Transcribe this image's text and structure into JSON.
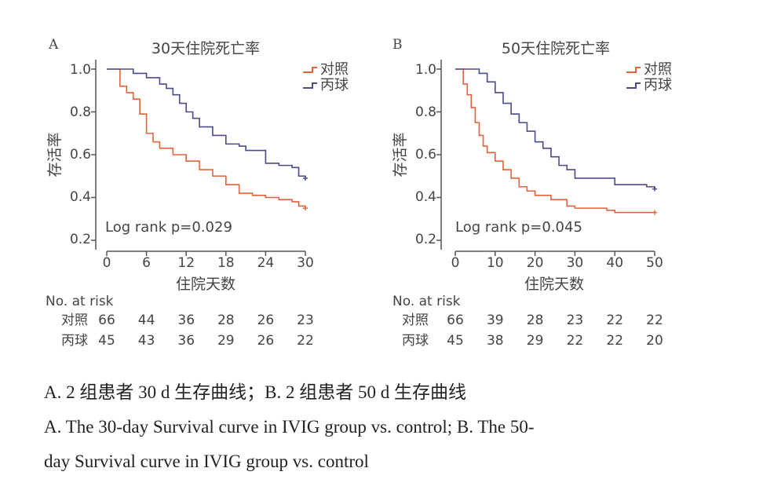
{
  "colors": {
    "control": "#e2643c",
    "ivig": "#4a4a8c",
    "axis": "#555555"
  },
  "chart_data": [
    {
      "panel": "A",
      "type": "line",
      "title": "30天住院死亡率",
      "xlabel": "住院天数",
      "ylabel": "存活率",
      "xticks": [
        0,
        6,
        12,
        18,
        24,
        30
      ],
      "yticks": [
        0.2,
        0.4,
        0.6,
        0.8,
        1.0
      ],
      "ytick_labels": [
        "0.2",
        "0.4",
        "0.6",
        "0.8",
        "1.0"
      ],
      "xlim": [
        0,
        30
      ],
      "ylim": [
        0.2,
        1.0
      ],
      "annotation": "Log rank p=0.029",
      "series": [
        {
          "name": "对照",
          "key": "control",
          "x": [
            0,
            2,
            3,
            4,
            5,
            6,
            7,
            8,
            10,
            12,
            14,
            16,
            18,
            20,
            22,
            24,
            26,
            28,
            29,
            30
          ],
          "y": [
            1.0,
            0.92,
            0.89,
            0.86,
            0.79,
            0.7,
            0.66,
            0.63,
            0.6,
            0.57,
            0.53,
            0.5,
            0.46,
            0.42,
            0.41,
            0.4,
            0.39,
            0.38,
            0.36,
            0.35
          ]
        },
        {
          "name": "丙球",
          "key": "ivig",
          "x": [
            0,
            4,
            6,
            8,
            9,
            10,
            11,
            12,
            13,
            14,
            16,
            18,
            20,
            21,
            24,
            26,
            28,
            29,
            30
          ],
          "y": [
            1.0,
            0.98,
            0.96,
            0.93,
            0.91,
            0.88,
            0.84,
            0.8,
            0.77,
            0.73,
            0.69,
            0.65,
            0.64,
            0.62,
            0.56,
            0.55,
            0.54,
            0.5,
            0.49
          ]
        }
      ],
      "risk_table": {
        "header": "No. at risk",
        "columns": [
          "0",
          "6",
          "12",
          "18",
          "24",
          "30"
        ],
        "rows": [
          {
            "label": "对照",
            "values": [
              "66",
              "44",
              "36",
              "28",
              "26",
              "23"
            ]
          },
          {
            "label": "丙球",
            "values": [
              "45",
              "43",
              "36",
              "29",
              "26",
              "22"
            ]
          }
        ]
      }
    },
    {
      "panel": "B",
      "type": "line",
      "title": "50天住院死亡率",
      "xlabel": "住院天数",
      "ylabel": "存活率",
      "xticks": [
        0,
        10,
        20,
        30,
        40,
        50
      ],
      "yticks": [
        0.2,
        0.4,
        0.6,
        0.8,
        1.0
      ],
      "ytick_labels": [
        "0.2",
        "0.4",
        "0.6",
        "0.8",
        "1.0"
      ],
      "xlim": [
        0,
        50
      ],
      "ylim": [
        0.2,
        1.0
      ],
      "annotation": "Log rank p=0.045",
      "series": [
        {
          "name": "对照",
          "key": "control",
          "x": [
            0,
            2,
            3,
            4,
            5,
            6,
            7,
            8,
            10,
            12,
            14,
            16,
            18,
            20,
            24,
            28,
            30,
            38,
            40,
            50
          ],
          "y": [
            1.0,
            0.93,
            0.88,
            0.82,
            0.75,
            0.69,
            0.64,
            0.61,
            0.57,
            0.53,
            0.49,
            0.45,
            0.43,
            0.41,
            0.39,
            0.36,
            0.35,
            0.34,
            0.33,
            0.33
          ]
        },
        {
          "name": "丙球",
          "key": "ivig",
          "x": [
            0,
            6,
            8,
            10,
            12,
            14,
            16,
            18,
            20,
            22,
            24,
            26,
            28,
            30,
            36,
            40,
            48,
            50
          ],
          "y": [
            1.0,
            0.98,
            0.94,
            0.89,
            0.84,
            0.79,
            0.75,
            0.71,
            0.66,
            0.63,
            0.59,
            0.55,
            0.53,
            0.49,
            0.49,
            0.46,
            0.45,
            0.44
          ]
        }
      ],
      "risk_table": {
        "header": "No. at risk",
        "columns": [
          "0",
          "10",
          "20",
          "30",
          "40",
          "50"
        ],
        "rows": [
          {
            "label": "对照",
            "values": [
              "66",
              "39",
              "28",
              "23",
              "22",
              "22"
            ]
          },
          {
            "label": "丙球",
            "values": [
              "45",
              "38",
              "29",
              "22",
              "22",
              "20"
            ]
          }
        ]
      }
    }
  ],
  "caption": {
    "line1": "A. 2 组患者 30 d 生存曲线；B. 2 组患者 50 d 生存曲线",
    "line2": "A. The 30-day Survival curve in IVIG group vs. control; B. The 50-",
    "line3": "day Survival curve in IVIG group vs. control"
  }
}
